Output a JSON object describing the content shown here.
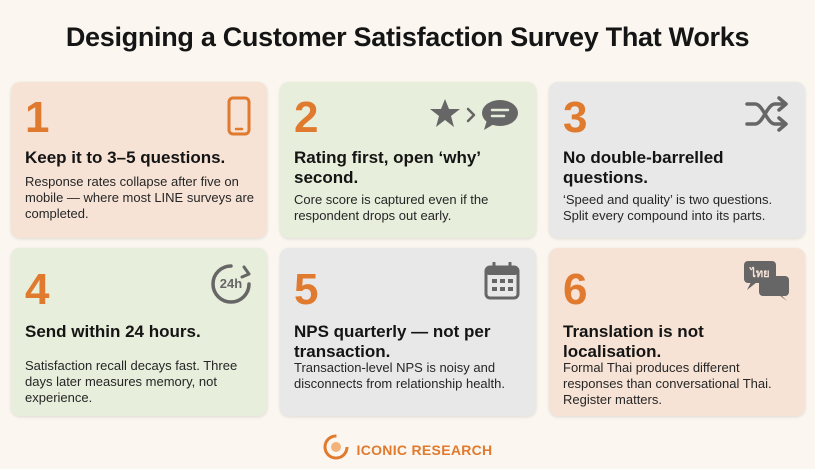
{
  "title": "Designing a Customer Satisfaction Survey That Works",
  "colors": {
    "accent": "#e07a2e",
    "peach": "#f6e3d6",
    "green": "#e7eedb",
    "grey": "#e8e8e9",
    "icon": "#666666"
  },
  "cards": [
    {
      "number": "1",
      "heading": "Keep it to 3–5 questions.",
      "body": "Response rates collapse after five on mobile — where most LINE surveys are completed.",
      "icon": "phone-icon"
    },
    {
      "number": "2",
      "heading": "Rating first, open ‘why’ second.",
      "body": "Core score is captured even if the respondent drops out early.",
      "icon": "star-to-comment-icon"
    },
    {
      "number": "3",
      "heading": "No double-barrelled questions.",
      "body": "‘Speed and quality’ is two questions. Split every compound into its parts.",
      "icon": "shuffle-icon"
    },
    {
      "number": "4",
      "heading": "Send within 24 hours.",
      "body": "Satisfaction recall decays fast. Three days later measures memory, not experience.",
      "icon": "24h-icon",
      "icon_text": "24h"
    },
    {
      "number": "5",
      "heading": "NPS quarterly — not per transaction.",
      "body": "Transaction-level NPS is noisy and disconnects from relationship health.",
      "icon": "calendar-icon"
    },
    {
      "number": "6",
      "heading": "Translation is not localisation.",
      "body": "Formal Thai produces different responses than conversational Thai. Register matters.",
      "icon": "speech-bubbles-icon",
      "icon_text": "ไทย"
    }
  ],
  "footer": {
    "brand": "ICONIC RESEARCH",
    "logo": "iconic-research-logo"
  }
}
